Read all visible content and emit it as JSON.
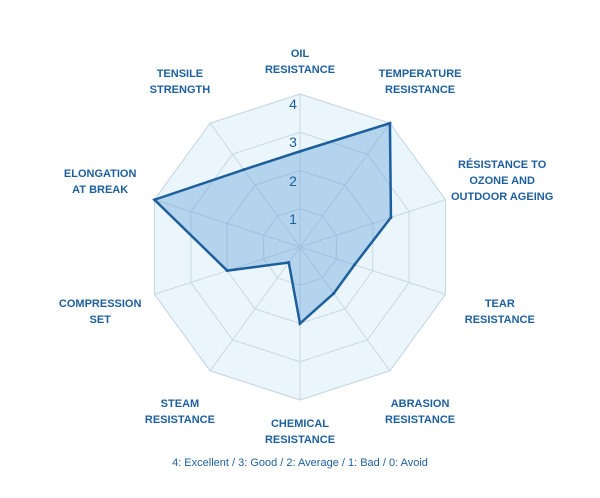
{
  "chart_data": {
    "type": "radar",
    "axes": [
      "OIL\nRESISTANCE",
      "TEMPERATURE\nRESISTANCE",
      "RÉSISTANCE TO\nOZONE AND\nOUTDOOR AGEING",
      "TEAR\nRESISTANCE",
      "ABRASION\nRESISTANCE",
      "CHEMICAL\nRESISTANCE",
      "STEAM\nRESISTANCE",
      "COMPRESSION\nSET",
      "ELONGATION\nAT BREAK",
      "TENSILE\nSTRENGTH"
    ],
    "values": [
      2.5,
      4,
      2.5,
      1.5,
      1.5,
      2,
      0.5,
      2,
      4,
      2.5
    ],
    "ticks": [
      "1",
      "2",
      "3",
      "4"
    ],
    "range": [
      0,
      4
    ],
    "footnote": "4: Excellent / 3: Good / 2: Average / 1: Bad / 0: Avoid"
  },
  "colors": {
    "text": "#1d5f9c",
    "line": "#1d5f9c",
    "fill": "#5b9bd5",
    "web_fill": "#eaf5fc",
    "grid": "#c9d9e4"
  }
}
